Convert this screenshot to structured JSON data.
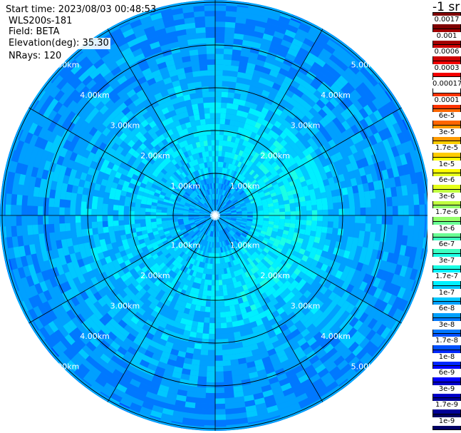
{
  "header": {
    "start_time": "Start time: 2023/08/03 00:48:53",
    "instrument": "WLS200s-181",
    "field": "Field: BETA",
    "elevation": "Elevation(deg): 35.30",
    "nrays": "NRays: 120"
  },
  "chart_data": {
    "type": "heatmap",
    "projection": "polar",
    "field": "BETA",
    "unit_label": "-1 sr",
    "rings_km": [
      1,
      2,
      3,
      4,
      5
    ],
    "ring_labels": [
      "1.00km",
      "2.00km",
      "3.00km",
      "4.00km",
      "5.00km"
    ],
    "spokes": 12,
    "rays": 120,
    "max_range_km": 5.0,
    "colorbar": {
      "levels": [
        {
          "label": "0.0017",
          "color": "#7f0000"
        },
        {
          "label": "0.001",
          "color": "#a30000"
        },
        {
          "label": "0.0006",
          "color": "#cc0000"
        },
        {
          "label": "0.0003",
          "color": "#f20000"
        },
        {
          "label": "0.00017",
          "color": "#ffffff"
        },
        {
          "label": "0.0001",
          "color": "#ff3300"
        },
        {
          "label": "6e-5",
          "color": "#ff6600"
        },
        {
          "label": "3e-5",
          "color": "#ff9900"
        },
        {
          "label": "1.7e-5",
          "color": "#ffcc00"
        },
        {
          "label": "1e-5",
          "color": "#ffff00"
        },
        {
          "label": "6e-6",
          "color": "#e5ff1a"
        },
        {
          "label": "3e-6",
          "color": "#c0ff3e"
        },
        {
          "label": "1.7e-6",
          "color": "#94ff6a"
        },
        {
          "label": "1e-6",
          "color": "#6aff94"
        },
        {
          "label": "6e-7",
          "color": "#3effc0"
        },
        {
          "label": "3e-7",
          "color": "#1affe5"
        },
        {
          "label": "1.7e-7",
          "color": "#00f0ff"
        },
        {
          "label": "1e-7",
          "color": "#00c8ff"
        },
        {
          "label": "6e-8",
          "color": "#00a0ff"
        },
        {
          "label": "3e-8",
          "color": "#0078ff"
        },
        {
          "label": "1.7e-8",
          "color": "#0050ff"
        },
        {
          "label": "1e-8",
          "color": "#0028ff"
        },
        {
          "label": "6e-9",
          "color": "#0000ff"
        },
        {
          "label": "3e-9",
          "color": "#0000c8"
        },
        {
          "label": "1.7e-9",
          "color": "#000096"
        },
        {
          "label": "1e-9",
          "color": "#000064"
        }
      ]
    }
  }
}
